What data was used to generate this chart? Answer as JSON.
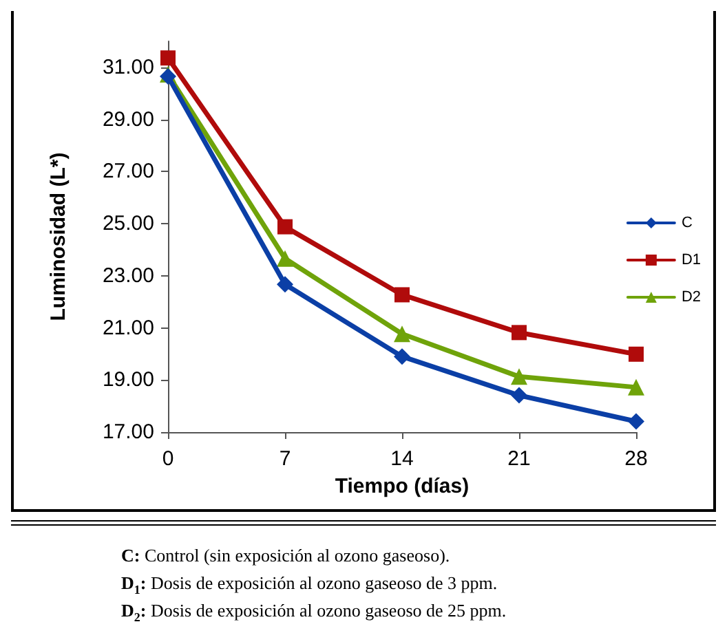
{
  "chart_data": {
    "type": "line",
    "xlabel": "Tiempo (días)",
    "ylabel": "Luminosidad (L*)",
    "x": [
      0,
      7,
      14,
      21,
      28
    ],
    "series": [
      {
        "name": "C",
        "color": "#0b3fa6",
        "marker": "diamond",
        "values": [
          30.65,
          22.67,
          19.9,
          18.41,
          17.41
        ]
      },
      {
        "name": "D1",
        "color": "#b00b0b",
        "marker": "square",
        "values": [
          31.36,
          24.88,
          22.27,
          20.82,
          19.99
        ]
      },
      {
        "name": "D2",
        "color": "#6fa30a",
        "marker": "triangle",
        "values": [
          30.73,
          23.66,
          20.77,
          19.13,
          18.72
        ]
      }
    ],
    "xlim": [
      0,
      28
    ],
    "xticks": [
      0,
      7,
      14,
      21,
      28
    ],
    "ylim": [
      17,
      32
    ],
    "yticks": [
      {
        "value": 17,
        "label": "17.00"
      },
      {
        "value": 19,
        "label": "19.00"
      },
      {
        "value": 21,
        "label": "21.00"
      },
      {
        "value": 23,
        "label": "23.00"
      },
      {
        "value": 25,
        "label": "25.00"
      },
      {
        "value": 27,
        "label": "27.00"
      },
      {
        "value": 29,
        "label": "29.00"
      },
      {
        "value": 31,
        "label": "31.00"
      }
    ],
    "grid": false,
    "legend": "right",
    "line_style": "solid",
    "annotations": [
      "C: Control (sin exposición al ozono gaseoso).",
      "D$_{1}$: Dosis de exposición al ozono gaseoso de 3 ppm.",
      "D$_{2}$: Dosis de exposición al ozono gaseoso de 25 ppm."
    ]
  }
}
